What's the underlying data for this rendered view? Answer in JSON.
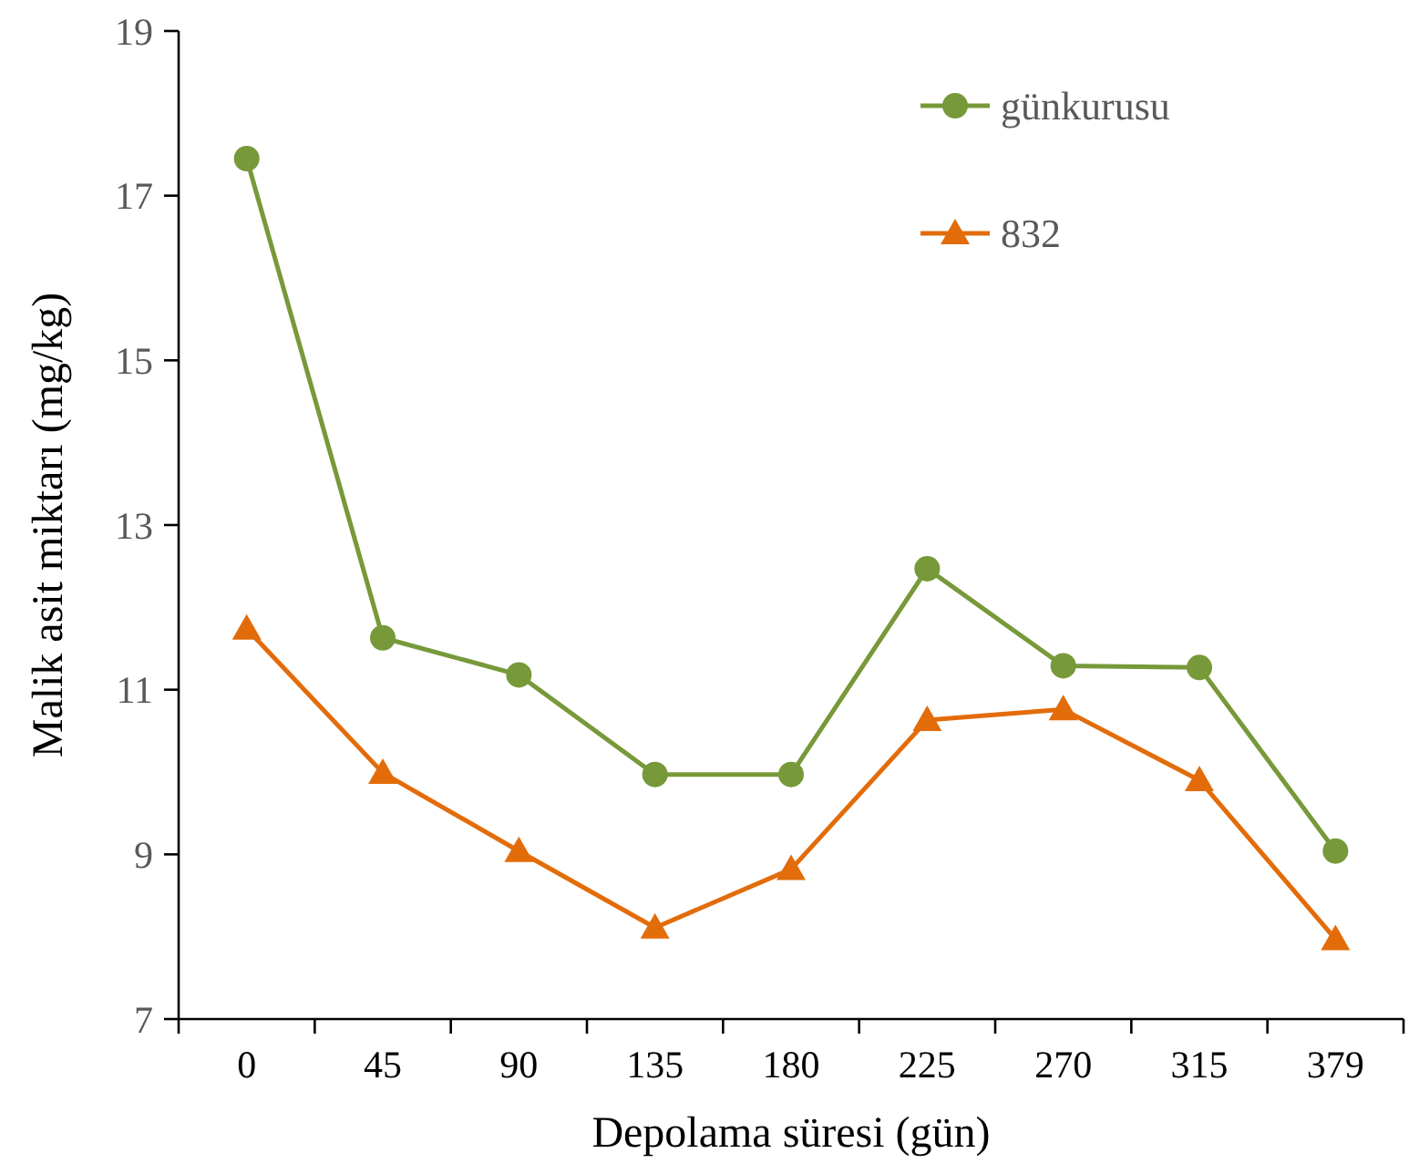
{
  "chart_data": {
    "type": "line",
    "xlabel": "Depolama süresi (gün)",
    "ylabel": "Malik asit miktarı (mg/kg)",
    "categories": [
      "0",
      "45",
      "90",
      "135",
      "180",
      "225",
      "270",
      "315",
      "379"
    ],
    "ylim": [
      7,
      19
    ],
    "yticks": [
      7,
      9,
      11,
      13,
      15,
      17,
      19
    ],
    "grid": false,
    "legend": "top right",
    "series": [
      {
        "name": "günkurusu",
        "color": "#77993a",
        "marker": "circle",
        "values": [
          17.45,
          11.63,
          11.18,
          9.97,
          9.97,
          12.47,
          11.29,
          11.27,
          9.04
        ]
      },
      {
        "name": "832",
        "color": "#e36c0a",
        "marker": "triangle",
        "values": [
          11.74,
          9.99,
          9.04,
          8.11,
          8.82,
          10.63,
          10.76,
          9.9,
          7.97
        ]
      }
    ]
  }
}
